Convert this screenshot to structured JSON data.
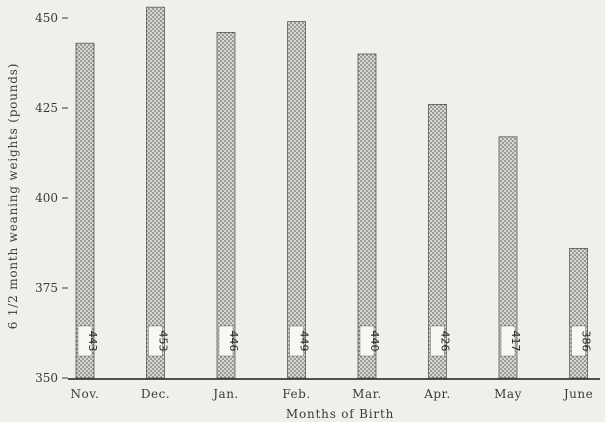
{
  "chart_data": {
    "type": "bar",
    "title": "",
    "xlabel": "Months of Birth",
    "ylabel": "6 1/2 month weaning weights (pounds)",
    "categories": [
      "Nov.",
      "Dec.",
      "Jan.",
      "Feb.",
      "Mar.",
      "Apr.",
      "May",
      "June"
    ],
    "values": [
      443,
      453,
      446,
      449,
      440,
      426,
      417,
      386
    ],
    "value_labels": [
      "443",
      "453",
      "446",
      "449",
      "440",
      "426",
      "417",
      "386"
    ],
    "ylim": [
      350,
      450
    ],
    "yticks": [
      350,
      375,
      400,
      425,
      450
    ],
    "grid": false,
    "colors": {
      "bar_fill": "#d6d6d2",
      "bar_dots": "#4a4a4a",
      "axis": "#3a3a3a",
      "text": "#3a3a3a",
      "background": "#efefec"
    }
  }
}
